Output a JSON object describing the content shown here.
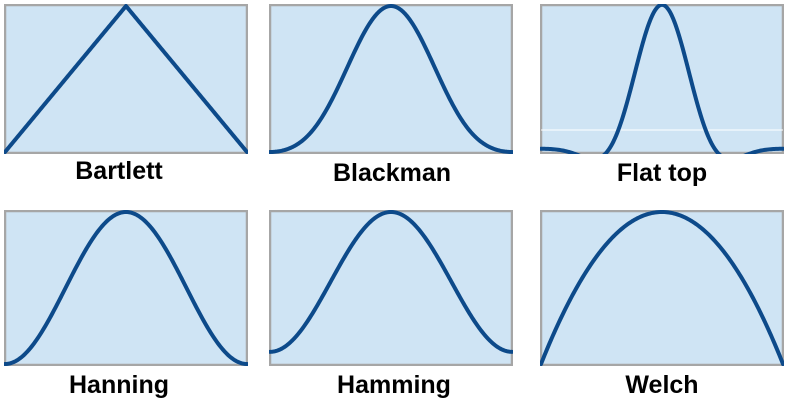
{
  "colors": {
    "panel_fill": "#cfe4f4",
    "panel_border": "#a6a6a6",
    "curve": "#0d4a8a"
  },
  "windows": [
    {
      "name": "Bartlett"
    },
    {
      "name": "Blackman"
    },
    {
      "name": "Flat top"
    },
    {
      "name": "Hanning"
    },
    {
      "name": "Hamming"
    },
    {
      "name": "Welch"
    }
  ]
}
